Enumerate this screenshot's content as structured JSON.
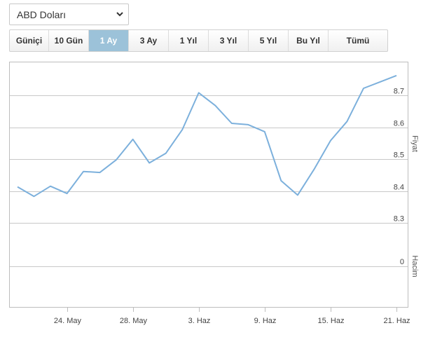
{
  "selector": {
    "value": "ABD Doları",
    "icon": "chevron-down-icon"
  },
  "range_tabs": [
    {
      "label": "Güniçi",
      "active": false
    },
    {
      "label": "10 Gün",
      "active": false
    },
    {
      "label": "1 Ay",
      "active": true
    },
    {
      "label": "3 Ay",
      "active": false
    },
    {
      "label": "1 Yıl",
      "active": false
    },
    {
      "label": "3 Yıl",
      "active": false
    },
    {
      "label": "5 Yıl",
      "active": false
    },
    {
      "label": "Bu Yıl",
      "active": false
    },
    {
      "label": "Tümü",
      "active": false
    }
  ],
  "colors": {
    "line": "#7cb0dc",
    "active_tab": "#9cc2d9",
    "grid": "#c8c8c8"
  },
  "chart_data": {
    "type": "line",
    "xlabel": "",
    "ylabel": "Fiyat",
    "volume_label": "Hacim",
    "grid": true,
    "x_tick_labels": [
      "24. May",
      "28. May",
      "3. Haz",
      "9. Haz",
      "15. Haz",
      "21. Haz"
    ],
    "y_tick_labels": [
      "8.7",
      "8.6",
      "8.5",
      "8.4",
      "8.3"
    ],
    "ylim": [
      8.3,
      8.7
    ],
    "volume_tick_labels": [
      "0"
    ],
    "series": [
      {
        "values": [
          8.413,
          8.383,
          8.415,
          8.392,
          8.461,
          8.458,
          8.498,
          8.562,
          8.488,
          8.518,
          8.592,
          8.708,
          8.668,
          8.612,
          8.608,
          8.586,
          8.432,
          8.387,
          8.468,
          8.558,
          8.618,
          8.722,
          8.742,
          8.762
        ]
      }
    ]
  }
}
